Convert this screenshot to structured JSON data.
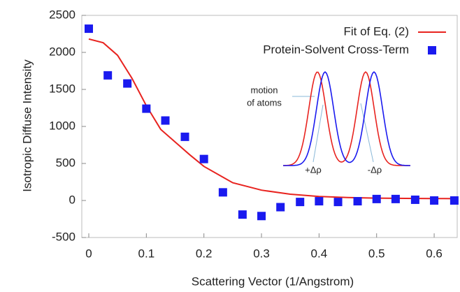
{
  "chart_data": {
    "type": "scatter_line",
    "x_label": "Scattering Vector (1/Angstrom)",
    "y_label": "Isotropic Diffuse Intensity",
    "xlim": [
      0,
      0.64
    ],
    "ylim": [
      -500,
      2500
    ],
    "xticks": [
      0,
      0.1,
      0.2,
      0.3,
      0.4,
      0.5,
      0.6
    ],
    "yticks": [
      -500,
      0,
      500,
      1000,
      1500,
      2000,
      2500
    ],
    "series": [
      {
        "name": "Fit of Eq. (2)",
        "color": "#e8231f",
        "kind": "line",
        "x": [
          0,
          0.025,
          0.05,
          0.075,
          0.1,
          0.125,
          0.15,
          0.175,
          0.2,
          0.25,
          0.3,
          0.35,
          0.4,
          0.45,
          0.5,
          0.55,
          0.6,
          0.64
        ],
        "values": [
          2180,
          2130,
          1960,
          1650,
          1280,
          960,
          790,
          620,
          460,
          240,
          140,
          85,
          55,
          40,
          32,
          28,
          26,
          25
        ]
      },
      {
        "name": "Protein-Solvent Cross-Term",
        "color": "#1a1aef",
        "kind": "points",
        "x": [
          0,
          0.033,
          0.067,
          0.1,
          0.133,
          0.167,
          0.2,
          0.233,
          0.267,
          0.3,
          0.333,
          0.367,
          0.4,
          0.433,
          0.467,
          0.5,
          0.533,
          0.567,
          0.6,
          0.635
        ],
        "values": [
          2320,
          1690,
          1580,
          1240,
          1080,
          860,
          560,
          110,
          -190,
          -210,
          -90,
          -20,
          -10,
          -20,
          -10,
          20,
          20,
          10,
          0,
          0
        ]
      }
    ],
    "legend": "top-right",
    "annotations": [
      "motion",
      "of atoms",
      "+Δρ",
      "-Δρ"
    ]
  }
}
